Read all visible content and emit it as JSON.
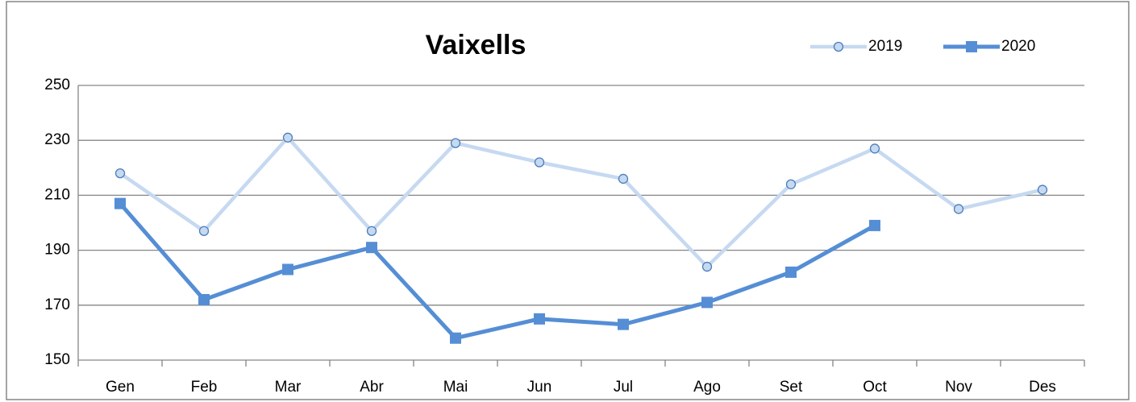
{
  "chart_data": {
    "type": "line",
    "title": "Vaixells",
    "categories": [
      "Gen",
      "Feb",
      "Mar",
      "Abr",
      "Mai",
      "Jun",
      "Jul",
      "Ago",
      "Set",
      "Oct",
      "Nov",
      "Des"
    ],
    "series": [
      {
        "name": "2019",
        "color": "#c6d9f1",
        "marker": "circle",
        "values": [
          218,
          197,
          231,
          197,
          229,
          222,
          216,
          184,
          214,
          227,
          205,
          212
        ]
      },
      {
        "name": "2020",
        "color": "#558ed5",
        "marker": "square",
        "values": [
          207,
          172,
          183,
          191,
          158,
          165,
          163,
          171,
          182,
          199,
          null,
          null
        ]
      }
    ],
    "ylim": [
      150,
      250
    ],
    "yticks": [
      150,
      170,
      190,
      210,
      230,
      250
    ],
    "grid": true,
    "legend": "top-right"
  }
}
